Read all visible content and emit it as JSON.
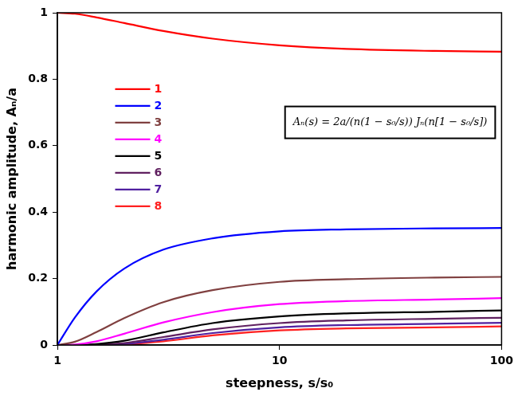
{
  "chart_data": {
    "type": "line",
    "x_label": "steepness, s/s₀",
    "y_label": "harmonic amplitude, Aₙ/a",
    "annotation": "Aₙ(s) = 2a/(n(1 − s₀/s)) Jₙ(n[1 − s₀/s])",
    "x": [
      1,
      1.2,
      1.5,
      2,
      3,
      5,
      10,
      20,
      50,
      100
    ],
    "series": [
      {
        "name": "1",
        "color": "#ff0000",
        "values": [
          1,
          0.997,
          0.986,
          0.969,
          0.945,
          0.922,
          0.902,
          0.891,
          0.885,
          0.883
        ]
      },
      {
        "name": "2",
        "color": "#0000ff",
        "values": [
          0,
          0.083,
          0.161,
          0.23,
          0.287,
          0.321,
          0.342,
          0.348,
          0.351,
          0.352
        ]
      },
      {
        "name": "3",
        "color": "#804040",
        "values": [
          0,
          0.01,
          0.039,
          0.081,
          0.129,
          0.165,
          0.19,
          0.198,
          0.203,
          0.205
        ]
      },
      {
        "name": "4",
        "color": "#ff00ff",
        "values": [
          0,
          0.0015,
          0.011,
          0.034,
          0.068,
          0.099,
          0.123,
          0.132,
          0.137,
          0.141
        ]
      },
      {
        "name": "5",
        "color": "#000000",
        "values": [
          0,
          0,
          0.003,
          0.013,
          0.038,
          0.066,
          0.086,
          0.095,
          0.1,
          0.104
        ]
      },
      {
        "name": "6",
        "color": "#602060",
        "values": [
          0,
          0,
          0.001,
          0.006,
          0.024,
          0.047,
          0.066,
          0.074,
          0.079,
          0.082
        ]
      },
      {
        "name": "7",
        "color": "#5020a0",
        "values": [
          0,
          0,
          0,
          0.003,
          0.016,
          0.036,
          0.053,
          0.06,
          0.064,
          0.067
        ]
      },
      {
        "name": "8",
        "color": "#ff2020",
        "values": [
          0,
          0,
          0,
          0.0015,
          0.011,
          0.029,
          0.044,
          0.05,
          0.053,
          0.056
        ]
      }
    ],
    "xlim": [
      1,
      100
    ],
    "xticks": [
      1,
      10,
      100
    ],
    "ylim": [
      0,
      1
    ],
    "yticks": [
      0,
      0.2,
      0.4,
      0.6,
      0.8,
      1
    ],
    "log": "x",
    "grid": false,
    "legend": "upper left"
  }
}
